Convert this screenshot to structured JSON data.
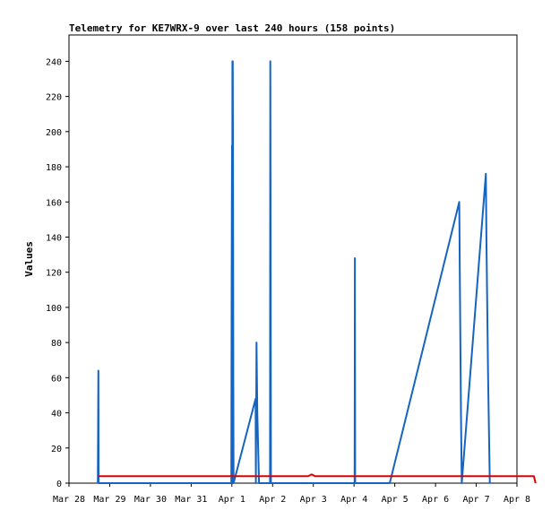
{
  "chart_data": {
    "type": "line",
    "title": "Telemetry for KE7WRX-9 over last 240 hours (158 points)",
    "ylabel": "Values",
    "xlabel": "",
    "ylim": [
      0,
      255
    ],
    "yticks": [
      0,
      20,
      40,
      60,
      80,
      100,
      120,
      140,
      160,
      180,
      200,
      220,
      240
    ],
    "xlim": [
      "2024-03-28",
      "2024-04-08"
    ],
    "xticks": [
      {
        "date": "2024-03-28",
        "label": "Mar 28"
      },
      {
        "date": "2024-03-29",
        "label": "Mar 29"
      },
      {
        "date": "2024-03-30",
        "label": "Mar 30"
      },
      {
        "date": "2024-03-31",
        "label": "Mar 31"
      },
      {
        "date": "2024-04-01",
        "label": "Apr 1"
      },
      {
        "date": "2024-04-02",
        "label": "Apr 2"
      },
      {
        "date": "2024-04-03",
        "label": "Apr 3"
      },
      {
        "date": "2024-04-04",
        "label": "Apr 4"
      },
      {
        "date": "2024-04-05",
        "label": "Apr 5"
      },
      {
        "date": "2024-04-06",
        "label": "Apr 6"
      },
      {
        "date": "2024-04-07",
        "label": "Apr 7"
      },
      {
        "date": "2024-04-08",
        "label": "Apr 8"
      }
    ],
    "grid": false,
    "legend": "none",
    "series": [
      {
        "color": "#1565c0",
        "points": [
          [
            "2024-03-28 17:00",
            0
          ],
          [
            "2024-03-28 17:10",
            32
          ],
          [
            "2024-03-28 17:20",
            64
          ],
          [
            "2024-03-28 17:30",
            0
          ],
          [
            "2024-03-31 23:40",
            0
          ],
          [
            "2024-03-31 23:50",
            96
          ],
          [
            "2024-04-01 00:00",
            160
          ],
          [
            "2024-04-01 00:05",
            192
          ],
          [
            "2024-04-01 00:10",
            0
          ],
          [
            "2024-04-01 00:20",
            240
          ],
          [
            "2024-04-01 00:25",
            0
          ],
          [
            "2024-04-01 00:30",
            240
          ],
          [
            "2024-04-01 00:40",
            180
          ],
          [
            "2024-04-01 00:50",
            60
          ],
          [
            "2024-04-01 01:00",
            0
          ],
          [
            "2024-04-01 14:00",
            48
          ],
          [
            "2024-04-01 14:10",
            0
          ],
          [
            "2024-04-01 14:30",
            80
          ],
          [
            "2024-04-01 15:00",
            40
          ],
          [
            "2024-04-01 16:00",
            0
          ],
          [
            "2024-04-01 22:30",
            0
          ],
          [
            "2024-04-01 22:40",
            240
          ],
          [
            "2024-04-01 22:50",
            120
          ],
          [
            "2024-04-01 23:00",
            0
          ],
          [
            "2024-04-04 00:20",
            0
          ],
          [
            "2024-04-04 00:30",
            128
          ],
          [
            "2024-04-04 00:40",
            0
          ],
          [
            "2024-04-04 21:00",
            0
          ],
          [
            "2024-04-06 14:00",
            160
          ],
          [
            "2024-04-06 14:20",
            120
          ],
          [
            "2024-04-06 15:00",
            40
          ],
          [
            "2024-04-06 15:30",
            0
          ],
          [
            "2024-04-07 05:40",
            176
          ],
          [
            "2024-04-07 06:00",
            140
          ],
          [
            "2024-04-07 07:00",
            60
          ],
          [
            "2024-04-07 08:00",
            0
          ]
        ]
      },
      {
        "color": "#e00000",
        "points": [
          [
            "2024-03-28 17:00",
            4
          ],
          [
            "2024-04-02 21:00",
            4
          ],
          [
            "2024-04-02 23:00",
            5
          ],
          [
            "2024-04-03 01:00",
            4
          ],
          [
            "2024-04-08 10:00",
            4
          ],
          [
            "2024-04-08 11:00",
            0
          ]
        ]
      }
    ]
  }
}
